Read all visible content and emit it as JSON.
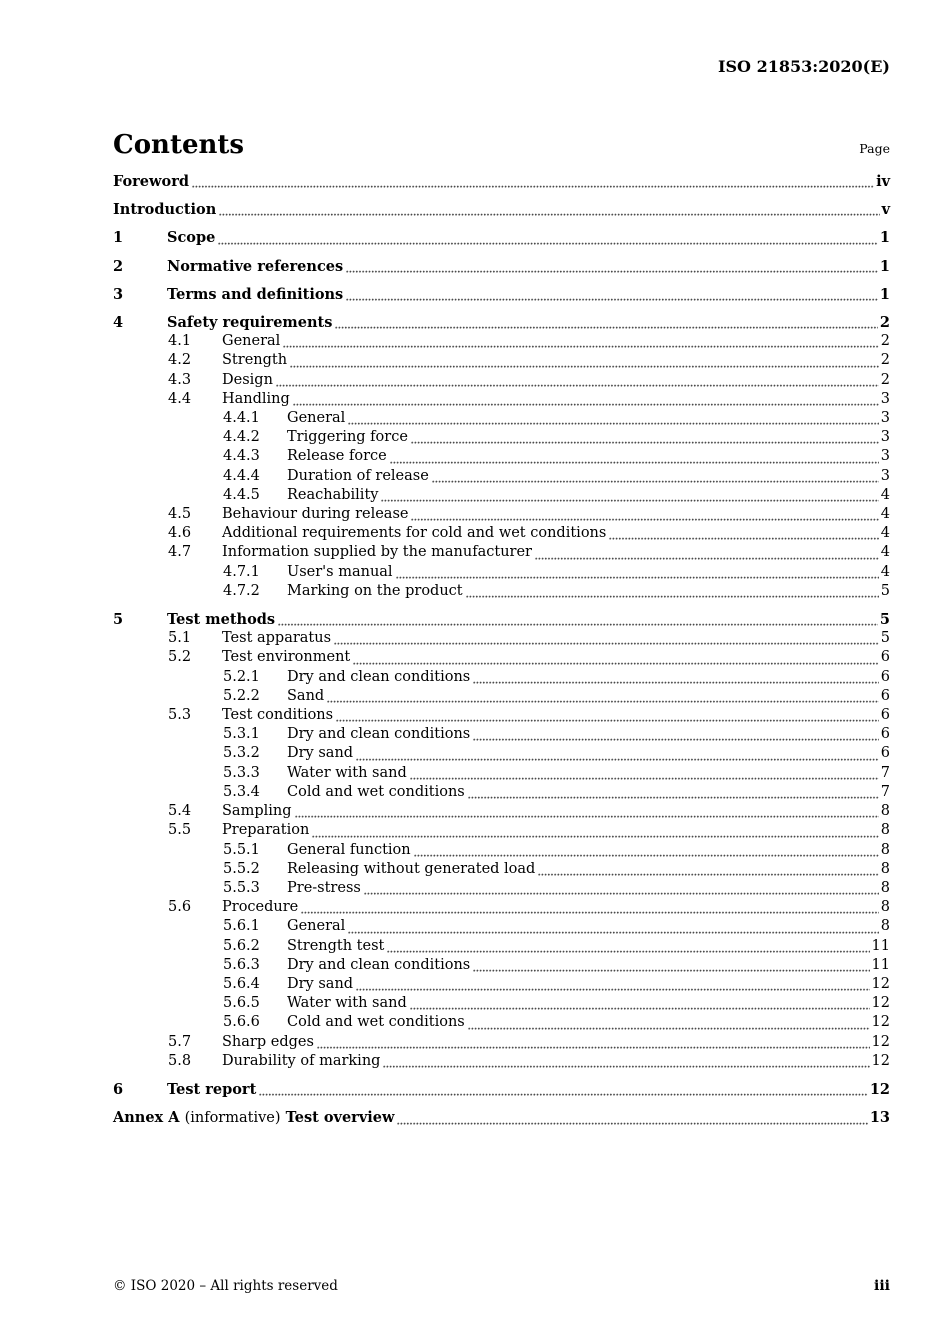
{
  "header": {
    "doc_ref": "ISO 21853:2020(E)"
  },
  "contents": {
    "title": "Contents",
    "page_label": "Page",
    "entries": [
      {
        "level": 0,
        "num": "",
        "title": "Foreword",
        "page": "iv",
        "bold": true
      },
      {
        "level": 0,
        "num": "",
        "title": "Introduction",
        "page": "v",
        "bold": true
      },
      {
        "level": 0,
        "num": "1",
        "title": "Scope",
        "page": "1",
        "bold": true
      },
      {
        "level": 0,
        "num": "2",
        "title": "Normative references",
        "page": "1",
        "bold": true
      },
      {
        "level": 0,
        "num": "3",
        "title": "Terms and definitions",
        "page": "1",
        "bold": true
      },
      {
        "level": 0,
        "num": "4",
        "title": "Safety requirements",
        "page": "2",
        "bold": true
      },
      {
        "level": 1,
        "num": "4.1",
        "title": "General",
        "page": "2",
        "bold": false
      },
      {
        "level": 1,
        "num": "4.2",
        "title": "Strength",
        "page": "2",
        "bold": false
      },
      {
        "level": 1,
        "num": "4.3",
        "title": "Design",
        "page": "2",
        "bold": false
      },
      {
        "level": 1,
        "num": "4.4",
        "title": "Handling",
        "page": "3",
        "bold": false
      },
      {
        "level": 2,
        "num": "4.4.1",
        "title": "General",
        "page": "3",
        "bold": false
      },
      {
        "level": 2,
        "num": "4.4.2",
        "title": "Triggering force",
        "page": "3",
        "bold": false
      },
      {
        "level": 2,
        "num": "4.4.3",
        "title": "Release force",
        "page": "3",
        "bold": false
      },
      {
        "level": 2,
        "num": "4.4.4",
        "title": "Duration of release",
        "page": "3",
        "bold": false
      },
      {
        "level": 2,
        "num": "4.4.5",
        "title": "Reachability",
        "page": "4",
        "bold": false
      },
      {
        "level": 1,
        "num": "4.5",
        "title": "Behaviour during release",
        "page": "4",
        "bold": false
      },
      {
        "level": 1,
        "num": "4.6",
        "title": "Additional requirements for cold and wet conditions",
        "page": "4",
        "bold": false
      },
      {
        "level": 1,
        "num": "4.7",
        "title": "Information supplied by the manufacturer",
        "page": "4",
        "bold": false
      },
      {
        "level": 2,
        "num": "4.7.1",
        "title": "User's manual",
        "page": "4",
        "bold": false
      },
      {
        "level": 2,
        "num": "4.7.2",
        "title": "Marking on the product",
        "page": "5",
        "bold": false
      },
      {
        "level": 0,
        "num": "5",
        "title": "Test methods",
        "page": "5",
        "bold": true
      },
      {
        "level": 1,
        "num": "5.1",
        "title": "Test apparatus",
        "page": "5",
        "bold": false
      },
      {
        "level": 1,
        "num": "5.2",
        "title": "Test environment",
        "page": "6",
        "bold": false
      },
      {
        "level": 2,
        "num": "5.2.1",
        "title": "Dry and clean conditions",
        "page": "6",
        "bold": false
      },
      {
        "level": 2,
        "num": "5.2.2",
        "title": "Sand",
        "page": "6",
        "bold": false
      },
      {
        "level": 1,
        "num": "5.3",
        "title": "Test conditions",
        "page": "6",
        "bold": false
      },
      {
        "level": 2,
        "num": "5.3.1",
        "title": "Dry and clean conditions",
        "page": "6",
        "bold": false
      },
      {
        "level": 2,
        "num": "5.3.2",
        "title": "Dry sand",
        "page": "6",
        "bold": false
      },
      {
        "level": 2,
        "num": "5.3.3",
        "title": "Water with sand",
        "page": "7",
        "bold": false
      },
      {
        "level": 2,
        "num": "5.3.4",
        "title": "Cold and wet conditions",
        "page": "7",
        "bold": false
      },
      {
        "level": 1,
        "num": "5.4",
        "title": "Sampling",
        "page": "8",
        "bold": false
      },
      {
        "level": 1,
        "num": "5.5",
        "title": "Preparation",
        "page": "8",
        "bold": false
      },
      {
        "level": 2,
        "num": "5.5.1",
        "title": "General function",
        "page": "8",
        "bold": false
      },
      {
        "level": 2,
        "num": "5.5.2",
        "title": "Releasing without generated load",
        "page": "8",
        "bold": false
      },
      {
        "level": 2,
        "num": "5.5.3",
        "title": "Pre-stress",
        "page": "8",
        "bold": false
      },
      {
        "level": 1,
        "num": "5.6",
        "title": "Procedure",
        "page": "8",
        "bold": false
      },
      {
        "level": 2,
        "num": "5.6.1",
        "title": "General",
        "page": "8",
        "bold": false
      },
      {
        "level": 2,
        "num": "5.6.2",
        "title": "Strength test",
        "page": "11",
        "bold": false
      },
      {
        "level": 2,
        "num": "5.6.3",
        "title": "Dry and clean conditions",
        "page": "11",
        "bold": false
      },
      {
        "level": 2,
        "num": "5.6.4",
        "title": "Dry sand",
        "page": "12",
        "bold": false
      },
      {
        "level": 2,
        "num": "5.6.5",
        "title": "Water with sand",
        "page": "12",
        "bold": false
      },
      {
        "level": 2,
        "num": "5.6.6",
        "title": "Cold and wet conditions",
        "page": "12",
        "bold": false
      },
      {
        "level": 1,
        "num": "5.7",
        "title": "Sharp edges",
        "page": "12",
        "bold": false
      },
      {
        "level": 1,
        "num": "5.8",
        "title": "Durability of marking",
        "page": "12",
        "bold": false
      },
      {
        "level": 0,
        "num": "6",
        "title": "Test report",
        "page": "12",
        "bold": true
      },
      {
        "level": 0,
        "num": "",
        "prefix": "Annex A",
        "middle": "(informative)",
        "title": "Test overview",
        "page": "13",
        "bold": true
      }
    ]
  },
  "footer": {
    "copyright": "© ISO 2020 – All rights reserved",
    "page_number": "iii"
  }
}
